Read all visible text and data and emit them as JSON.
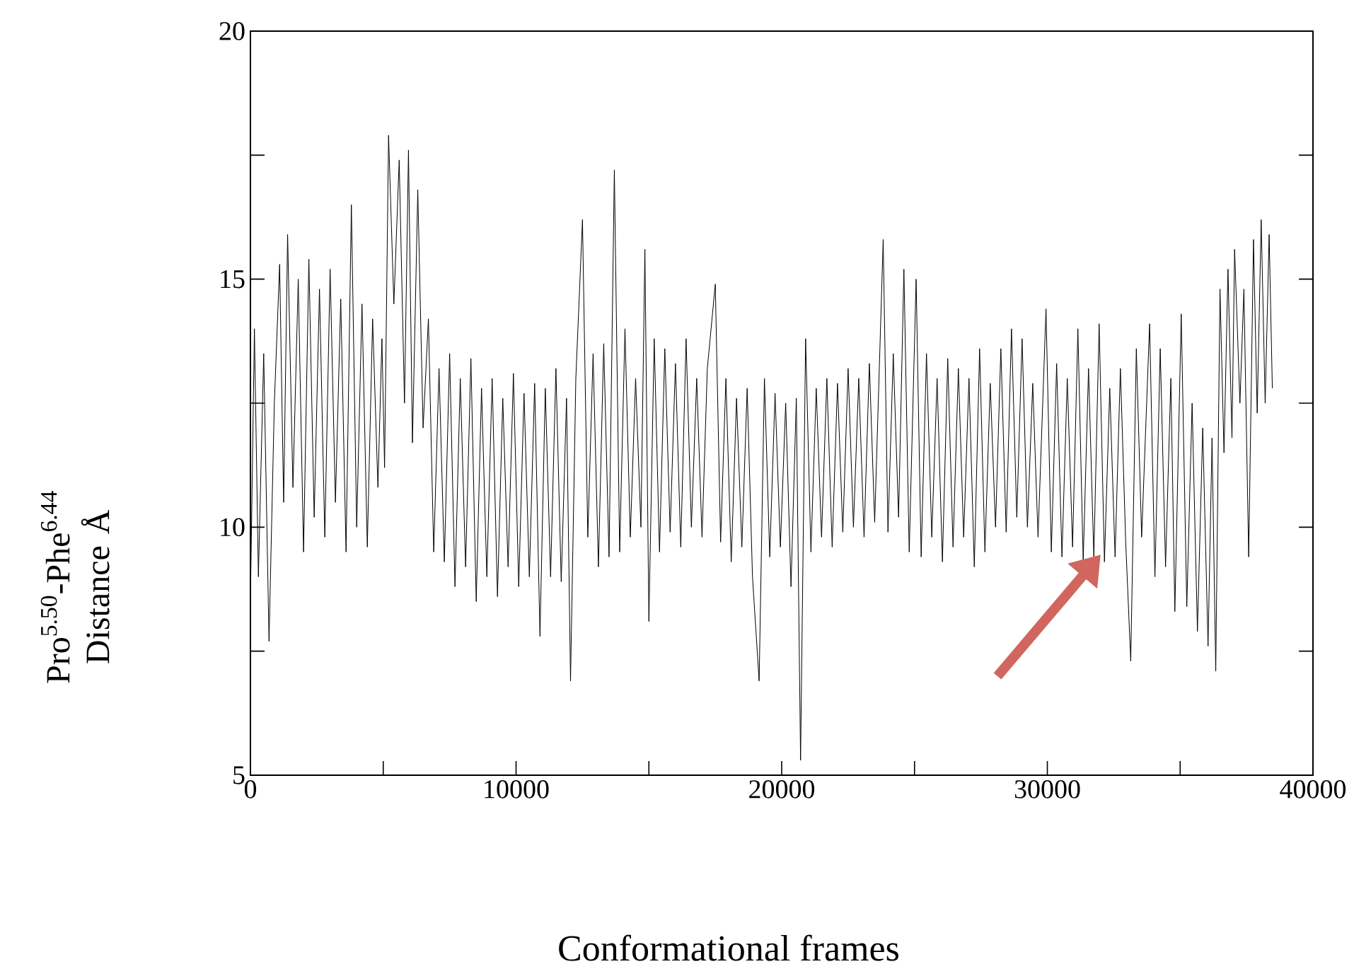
{
  "chart_data": {
    "type": "line",
    "xlabel": "Conformational frames",
    "ylabel": "Pro$^{5.50}$-Phe$^{6.44}$ Distance Å",
    "xlim": [
      0,
      40000
    ],
    "ylim": [
      5,
      20
    ],
    "xticks": [
      0,
      {
        "value": 5000,
        "label": null
      },
      10000,
      {
        "value": 15000,
        "label": null
      },
      20000,
      {
        "value": 25000,
        "label": null
      },
      30000,
      {
        "value": 35000,
        "label": null
      },
      40000
    ],
    "yticks": [
      5,
      {
        "value": 7.5,
        "label": null
      },
      10,
      {
        "value": 12.5,
        "label": null
      },
      15,
      {
        "value": 17.5,
        "label": null
      },
      20
    ],
    "line_style": "solid",
    "series": [
      {
        "color": "#000000",
        "x": [
          0,
          150,
          300,
          500,
          700,
          900,
          1100,
          1250,
          1400,
          1600,
          1800,
          2000,
          2200,
          2400,
          2600,
          2800,
          3000,
          3200,
          3400,
          3600,
          3800,
          4000,
          4200,
          4400,
          4600,
          4800,
          4950,
          5050,
          5200,
          5400,
          5600,
          5800,
          5950,
          6100,
          6300,
          6500,
          6700,
          6900,
          7100,
          7300,
          7500,
          7700,
          7900,
          8100,
          8300,
          8500,
          8700,
          8900,
          9100,
          9300,
          9500,
          9700,
          9900,
          10100,
          10300,
          10500,
          10700,
          10900,
          11100,
          11300,
          11500,
          11700,
          11900,
          12050,
          12250,
          12500,
          12700,
          12900,
          13100,
          13300,
          13500,
          13700,
          13900,
          14100,
          14300,
          14500,
          14700,
          14850,
          15000,
          15200,
          15400,
          15600,
          15800,
          16000,
          16200,
          16400,
          16600,
          16800,
          17000,
          17200,
          17500,
          17700,
          17900,
          18100,
          18300,
          18500,
          18700,
          18900,
          19150,
          19350,
          19550,
          19750,
          19950,
          20150,
          20350,
          20550,
          20710,
          20900,
          21100,
          21300,
          21500,
          21700,
          21900,
          22100,
          22300,
          22500,
          22700,
          22900,
          23100,
          23300,
          23500,
          23820,
          24000,
          24200,
          24400,
          24600,
          24800,
          25060,
          25250,
          25450,
          25650,
          25850,
          26050,
          26250,
          26450,
          26650,
          26850,
          27050,
          27250,
          27450,
          27650,
          27850,
          28050,
          28250,
          28450,
          28650,
          28850,
          29050,
          29250,
          29450,
          29650,
          29950,
          30150,
          30350,
          30550,
          30750,
          30950,
          31150,
          31350,
          31550,
          31750,
          31950,
          32150,
          32350,
          32550,
          32750,
          32950,
          33140,
          33350,
          33550,
          33850,
          34050,
          34250,
          34450,
          34650,
          34800,
          35040,
          35250,
          35450,
          35650,
          35850,
          36050,
          36200,
          36340,
          36500,
          36650,
          36800,
          36950,
          37050,
          37250,
          37400,
          37580,
          37760,
          37900,
          38050,
          38200,
          38350,
          38470
        ],
        "values": [
          8.5,
          14.0,
          9.0,
          13.5,
          7.7,
          12.5,
          15.3,
          10.5,
          15.9,
          10.8,
          15.0,
          9.5,
          15.4,
          10.2,
          14.8,
          9.8,
          15.2,
          10.5,
          14.6,
          9.5,
          16.5,
          10.0,
          14.5,
          9.6,
          14.2,
          10.8,
          13.8,
          11.2,
          17.9,
          14.5,
          17.4,
          12.5,
          17.6,
          11.7,
          16.8,
          12.0,
          14.2,
          9.5,
          13.2,
          9.3,
          13.5,
          8.8,
          13.0,
          9.2,
          13.4,
          8.5,
          12.8,
          9.0,
          13.0,
          8.6,
          12.6,
          9.2,
          13.1,
          8.8,
          12.7,
          9.0,
          12.9,
          7.8,
          12.8,
          9.0,
          13.2,
          8.9,
          12.6,
          6.9,
          13.0,
          16.2,
          9.8,
          13.5,
          9.2,
          13.7,
          9.4,
          17.2,
          9.5,
          14.0,
          9.8,
          13.0,
          10.0,
          15.6,
          8.1,
          13.8,
          9.5,
          13.6,
          9.9,
          13.3,
          9.6,
          13.8,
          10.0,
          13.0,
          9.8,
          13.2,
          14.9,
          9.7,
          13.0,
          9.3,
          12.6,
          9.6,
          12.8,
          9.0,
          6.9,
          13.0,
          9.4,
          12.7,
          9.6,
          12.5,
          8.8,
          12.6,
          5.3,
          13.8,
          9.5,
          12.8,
          9.8,
          13.0,
          9.6,
          12.9,
          9.9,
          13.2,
          10.0,
          13.0,
          9.8,
          13.3,
          10.1,
          15.8,
          9.9,
          13.5,
          10.2,
          15.2,
          9.5,
          15.0,
          9.4,
          13.5,
          9.8,
          13.0,
          9.3,
          13.4,
          9.6,
          13.2,
          9.8,
          13.0,
          9.2,
          13.6,
          9.5,
          12.9,
          10.0,
          13.6,
          9.9,
          14.0,
          10.2,
          13.8,
          10.0,
          12.9,
          9.8,
          14.4,
          9.5,
          13.3,
          9.4,
          13.0,
          9.6,
          14.0,
          9.3,
          13.2,
          9.4,
          14.1,
          9.3,
          12.8,
          9.4,
          13.2,
          9.7,
          7.3,
          13.6,
          9.8,
          14.1,
          9.0,
          13.6,
          9.2,
          13.0,
          8.3,
          14.3,
          8.4,
          12.5,
          7.9,
          12.0,
          7.6,
          11.8,
          7.1,
          14.8,
          11.5,
          15.2,
          11.8,
          15.6,
          12.5,
          14.8,
          9.4,
          15.8,
          12.3,
          16.2,
          12.5,
          15.9,
          12.8
        ]
      }
    ]
  }
}
